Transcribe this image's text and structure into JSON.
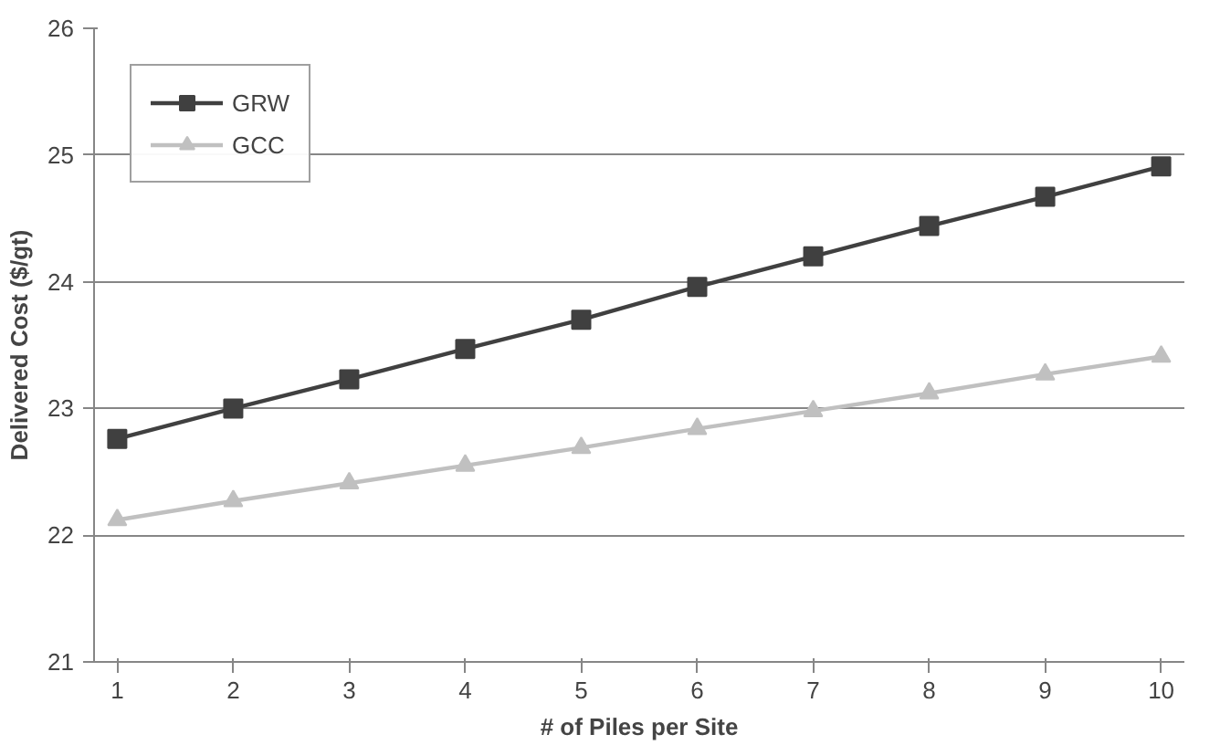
{
  "chart_data": {
    "type": "line",
    "xlabel": "# of Piles per Site",
    "ylabel": "Delivered Cost ($/gt)",
    "categories": [
      "1",
      "2",
      "3",
      "4",
      "5",
      "6",
      "7",
      "8",
      "9",
      "10"
    ],
    "ylim": [
      21,
      26
    ],
    "yticks": [
      21,
      22,
      23,
      24,
      25,
      26
    ],
    "grid": "y",
    "legend": "top left",
    "line_style": "solid",
    "series": [
      {
        "name": "GRW",
        "color": "#404040",
        "marker": "square",
        "values": [
          22.76,
          23.0,
          23.23,
          23.47,
          23.7,
          23.96,
          24.2,
          24.44,
          24.67,
          24.91
        ]
      },
      {
        "name": "GCC",
        "color": "#c0c0c0",
        "marker": "triangle",
        "values": [
          22.12,
          22.27,
          22.41,
          22.55,
          22.69,
          22.84,
          22.98,
          23.12,
          23.27,
          23.41
        ]
      }
    ]
  }
}
